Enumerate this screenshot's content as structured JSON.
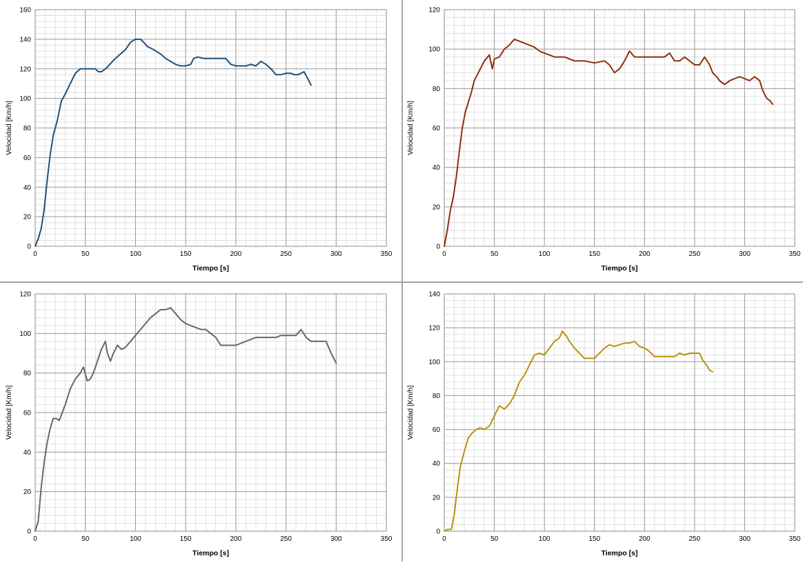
{
  "chart_data": [
    {
      "type": "line",
      "xlabel": "Tiempo [s]",
      "ylabel": "Velocidad [Km/h]",
      "xlim": [
        0,
        350
      ],
      "ylim": [
        0,
        160
      ],
      "xticks": [
        0,
        50,
        100,
        150,
        200,
        250,
        300,
        350
      ],
      "yticks": [
        0,
        20,
        40,
        60,
        80,
        100,
        120,
        140,
        160
      ],
      "grid": true,
      "legend": "none",
      "color": "#1f4e79",
      "series": [
        {
          "x": [
            0,
            3,
            6,
            9,
            12,
            15,
            18,
            22,
            26,
            30,
            35,
            40,
            45,
            50,
            55,
            60,
            63,
            66,
            70,
            73,
            77,
            80,
            85,
            90,
            95,
            100,
            105,
            108,
            112,
            118,
            125,
            130,
            135,
            140,
            145,
            150,
            155,
            158,
            162,
            168,
            175,
            180,
            190,
            195,
            200,
            205,
            210,
            215,
            220,
            225,
            230,
            235,
            240,
            245,
            250,
            255,
            258,
            262,
            265,
            268,
            272,
            275
          ],
          "y": [
            0,
            5,
            12,
            25,
            45,
            62,
            75,
            85,
            98,
            103,
            110,
            117,
            120,
            120,
            120,
            120,
            118,
            118,
            120,
            122,
            125,
            127,
            130,
            133,
            138,
            140,
            140,
            138,
            135,
            133,
            130,
            127,
            125,
            123,
            122,
            122,
            123,
            127,
            128,
            127,
            127,
            127,
            127,
            123,
            122,
            122,
            122,
            123,
            122,
            125,
            123,
            120,
            116,
            116,
            117,
            117,
            116,
            116,
            117,
            118,
            113,
            109
          ]
        }
      ]
    },
    {
      "type": "line",
      "xlabel": "Tiempo [s]",
      "ylabel": "Velocidad [Km/h]",
      "xlim": [
        0,
        350
      ],
      "ylim": [
        0,
        120
      ],
      "xticks": [
        0,
        50,
        100,
        150,
        200,
        250,
        300,
        350
      ],
      "yticks": [
        0,
        20,
        40,
        60,
        80,
        100,
        120
      ],
      "grid": true,
      "legend": "none",
      "color": "#8b2f0b",
      "series": [
        {
          "x": [
            0,
            3,
            6,
            9,
            12,
            15,
            18,
            21,
            24,
            27,
            30,
            35,
            40,
            45,
            48,
            50,
            55,
            60,
            65,
            70,
            75,
            80,
            85,
            90,
            95,
            100,
            105,
            110,
            120,
            130,
            140,
            150,
            160,
            165,
            170,
            175,
            180,
            185,
            190,
            200,
            210,
            220,
            225,
            230,
            235,
            240,
            245,
            250,
            255,
            260,
            265,
            268,
            272,
            275,
            280,
            285,
            290,
            295,
            300,
            305,
            310,
            315,
            318,
            320,
            322,
            325,
            328
          ],
          "y": [
            0,
            8,
            18,
            25,
            35,
            48,
            60,
            68,
            73,
            78,
            84,
            89,
            94,
            97,
            90,
            95,
            96,
            100,
            102,
            105,
            104,
            103,
            102,
            101,
            99,
            98,
            97,
            96,
            96,
            94,
            94,
            93,
            94,
            92,
            88,
            90,
            94,
            99,
            96,
            96,
            96,
            96,
            98,
            94,
            94,
            96,
            94,
            92,
            92,
            96,
            92,
            88,
            86,
            84,
            82,
            84,
            85,
            86,
            85,
            84,
            86,
            84,
            79,
            77,
            75,
            74,
            72
          ]
        }
      ]
    },
    {
      "type": "line",
      "xlabel": "Tiempo [s]",
      "ylabel": "Velocidad [Km/h]",
      "xlim": [
        0,
        350
      ],
      "ylim": [
        0,
        120
      ],
      "xticks": [
        0,
        50,
        100,
        150,
        200,
        250,
        300,
        350
      ],
      "yticks": [
        0,
        20,
        40,
        60,
        80,
        100,
        120
      ],
      "grid": true,
      "legend": "none",
      "color": "#666666",
      "series": [
        {
          "x": [
            0,
            3,
            6,
            9,
            12,
            15,
            18,
            21,
            24,
            27,
            30,
            35,
            40,
            45,
            48,
            52,
            55,
            58,
            62,
            66,
            70,
            72,
            75,
            78,
            82,
            86,
            90,
            95,
            100,
            105,
            110,
            115,
            120,
            125,
            130,
            135,
            140,
            145,
            150,
            155,
            160,
            165,
            170,
            175,
            180,
            185,
            190,
            195,
            200,
            210,
            220,
            230,
            240,
            245,
            250,
            255,
            260,
            265,
            270,
            275,
            280,
            285,
            290,
            295,
            300
          ],
          "y": [
            0,
            5,
            22,
            35,
            45,
            52,
            57,
            57,
            56,
            60,
            64,
            72,
            77,
            80,
            83,
            76,
            77,
            80,
            86,
            92,
            96,
            90,
            86,
            90,
            94,
            92,
            93,
            96,
            99,
            102,
            105,
            108,
            110,
            112,
            112,
            113,
            110,
            107,
            105,
            104,
            103,
            102,
            102,
            100,
            98,
            94,
            94,
            94,
            94,
            96,
            98,
            98,
            98,
            99,
            99,
            99,
            99,
            102,
            98,
            96,
            96,
            96,
            96,
            90,
            85
          ]
        }
      ]
    },
    {
      "type": "line",
      "xlabel": "Tiempo [s]",
      "ylabel": "Velocidad [Km/h]",
      "xlim": [
        0,
        350
      ],
      "ylim": [
        0,
        140
      ],
      "xticks": [
        0,
        50,
        100,
        150,
        200,
        250,
        300,
        350
      ],
      "yticks": [
        0,
        20,
        40,
        60,
        80,
        100,
        120,
        140
      ],
      "grid": true,
      "legend": "none",
      "color": "#b8920a",
      "series": [
        {
          "x": [
            0,
            3,
            7,
            10,
            13,
            16,
            20,
            24,
            28,
            32,
            36,
            40,
            45,
            50,
            55,
            60,
            65,
            70,
            75,
            80,
            85,
            90,
            95,
            100,
            105,
            110,
            115,
            118,
            122,
            125,
            130,
            135,
            140,
            145,
            150,
            155,
            160,
            165,
            170,
            175,
            180,
            185,
            190,
            195,
            200,
            205,
            210,
            220,
            230,
            235,
            240,
            245,
            250,
            255,
            258,
            262,
            265,
            268
          ],
          "y": [
            0,
            1,
            1,
            10,
            25,
            38,
            47,
            55,
            58,
            60,
            61,
            60,
            62,
            68,
            74,
            72,
            75,
            80,
            88,
            92,
            98,
            104,
            105,
            104,
            108,
            112,
            114,
            118,
            115,
            112,
            108,
            105,
            102,
            102,
            102,
            105,
            108,
            110,
            109,
            110,
            111,
            111,
            112,
            109,
            108,
            106,
            103,
            103,
            103,
            105,
            104,
            105,
            105,
            105,
            101,
            98,
            95,
            94
          ]
        }
      ]
    }
  ]
}
